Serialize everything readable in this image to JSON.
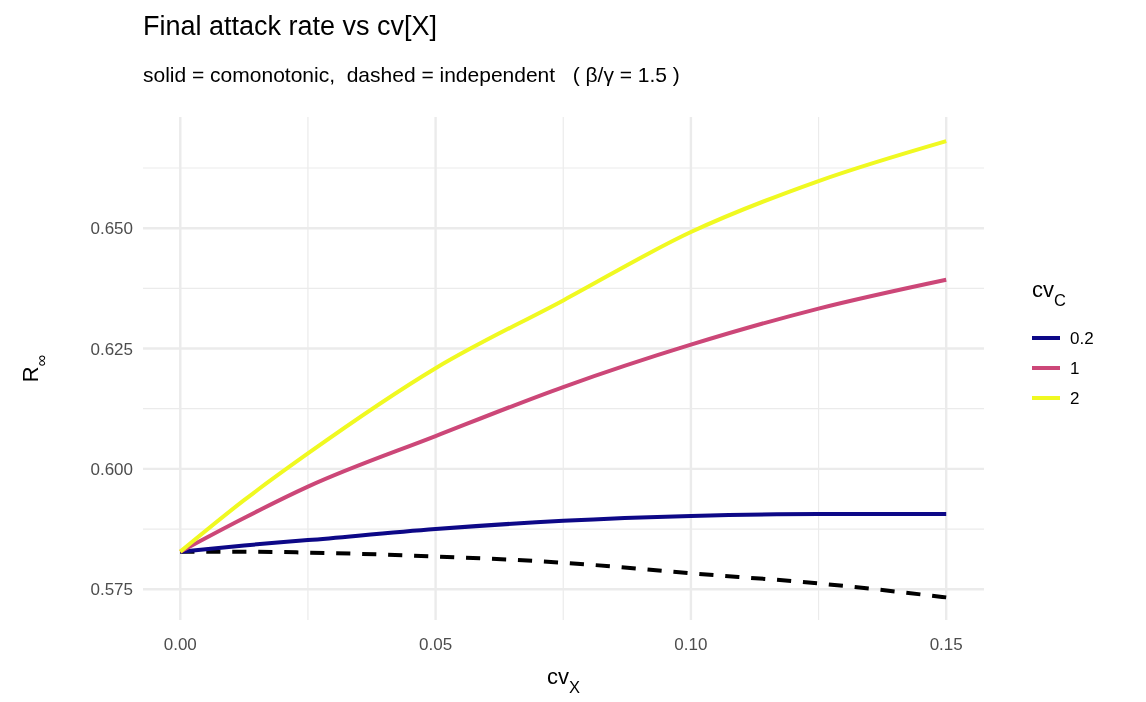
{
  "chart_data": {
    "type": "line",
    "title": "Final attack rate vs cv[X]",
    "subtitle": "solid = comonotonic,  dashed = independent   ( β/γ = 1.5 )",
    "xlabel": "cv$_{X}$",
    "ylabel": "R$_{∞}$",
    "legend_title": "cv$_{C}$",
    "legend": "right",
    "grid": true,
    "line_style": "solid",
    "marker": "none",
    "x": [
      0,
      0.0125,
      0.025,
      0.05,
      0.075,
      0.1,
      0.125,
      0.15
    ],
    "xlim": [
      -0.0073,
      0.1574
    ],
    "xticks": [
      {
        "value": 0,
        "label": "0.00"
      },
      {
        "value": 0.025,
        "label": null
      },
      {
        "value": 0.05,
        "label": "0.05"
      },
      {
        "value": 0.075,
        "label": null
      },
      {
        "value": 0.1,
        "label": "0.10"
      },
      {
        "value": 0.125,
        "label": null
      },
      {
        "value": 0.15,
        "label": "0.15"
      }
    ],
    "ylim": [
      0.5686,
      0.6731
    ],
    "yticks": [
      {
        "value": 0.575,
        "label": "0.575"
      },
      {
        "value": 0.5875,
        "label": null
      },
      {
        "value": 0.6,
        "label": "0.600"
      },
      {
        "value": 0.6125,
        "label": null
      },
      {
        "value": 0.625,
        "label": "0.625"
      },
      {
        "value": 0.6375,
        "label": null
      },
      {
        "value": 0.65,
        "label": "0.650"
      },
      {
        "value": 0.6625,
        "label": null
      }
    ],
    "series": [
      {
        "color": "#000000",
        "line_style": "dashed",
        "values": [
          0.5828,
          0.5828,
          0.5826,
          0.5818,
          0.5805,
          0.5783,
          0.5762,
          0.5733
        ]
      },
      {
        "name": "0.2",
        "color": "#0d0887",
        "values": [
          0.5828,
          0.5841,
          0.5852,
          0.5875,
          0.5892,
          0.5902,
          0.5906,
          0.5906
        ]
      },
      {
        "name": "1",
        "color": "#cc4778",
        "values": [
          0.5828,
          0.5898,
          0.5963,
          0.6068,
          0.617,
          0.6258,
          0.6333,
          0.6393
        ]
      },
      {
        "name": "2",
        "color": "#f0f921",
        "values": [
          0.5828,
          0.5935,
          0.6032,
          0.6209,
          0.635,
          0.6492,
          0.6598,
          0.6681
        ]
      }
    ]
  }
}
